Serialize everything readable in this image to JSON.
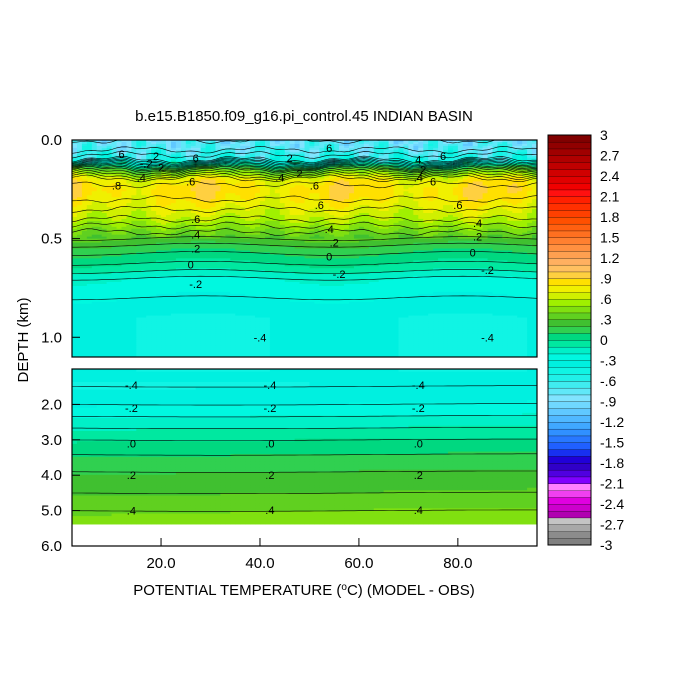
{
  "chart_data": {
    "type": "heatmap",
    "title": "b.e15.B1850.f09_g16.pi_control.45 INDIAN BASIN",
    "xlabel": "POTENTIAL TEMPERATURE (",
    "xlabel_unit": "C) (MODEL - OBS)",
    "ylabel": "DEPTH (km)",
    "xlim": [
      2,
      96
    ],
    "x_ticks": [
      "20.0",
      "40.0",
      "60.0",
      "80.0"
    ],
    "x_tick_values": [
      20,
      40,
      60,
      80
    ],
    "upper_panel": {
      "ylim": [
        0,
        1.1
      ],
      "y_ticks": [
        "0.0",
        "0.5",
        "1.0"
      ],
      "y_tick_values": [
        0,
        0.5,
        1.0
      ]
    },
    "lower_panel": {
      "ylim": [
        1,
        6
      ],
      "data_bottom": 5.375,
      "y_ticks": [
        "2.0",
        "3.0",
        "4.0",
        "5.0",
        "6.0"
      ],
      "y_tick_values": [
        2,
        3,
        4,
        5,
        6
      ]
    },
    "colorbar": {
      "min": -3,
      "max": 3,
      "step": 0.1,
      "tick_labels": [
        "3",
        "2.7",
        "2.4",
        "2.1",
        "1.8",
        "1.5",
        "1.2",
        ".9",
        ".6",
        ".3",
        "0",
        "-.3",
        "-.6",
        "-.9",
        "-1.2",
        "-1.5",
        "-1.8",
        "-2.1",
        "-2.4",
        "-2.7",
        "-3"
      ],
      "tick_values": [
        3,
        2.7,
        2.4,
        2.1,
        1.8,
        1.5,
        1.2,
        0.9,
        0.6,
        0.3,
        0,
        -0.3,
        -0.6,
        -0.9,
        -1.2,
        -1.5,
        -1.8,
        -2.1,
        -2.4,
        -2.7,
        -3
      ],
      "colors": {
        "-3.0": "#808080",
        "-2.9": "#8c8c8c",
        "-2.8": "#a8a8a8",
        "-2.7": "#c4c4c4",
        "-2.6": "#b000b0",
        "-2.5": "#cc00cc",
        "-2.4": "#e000e0",
        "-2.3": "#f040f0",
        "-2.2": "#ff80ff",
        "-2.1": "#8000ff",
        "-2.0": "#5000e0",
        "-1.9": "#3000c8",
        "-1.8": "#2000d8",
        "-1.7": "#1830f0",
        "-1.6": "#2060ff",
        "-1.5": "#2878ff",
        "-1.4": "#3090ff",
        "-1.3": "#40a8ff",
        "-1.2": "#50b8ff",
        "-1.1": "#60c8ff",
        "-1.0": "#70d8ff",
        "-0.9": "#80e4ff",
        "-0.8": "#60e8f8",
        "-0.7": "#40ecf0",
        "-0.6": "#20f0e8",
        "-0.5": "#10f4e4",
        "-0.4": "#00f0e0",
        "-0.3": "#00f8e0",
        "-0.2": "#00f0c8",
        "-0.1": "#00e8a0",
        "0.0": "#00d880",
        "0.1": "#30d050",
        "0.2": "#40c030",
        "0.3": "#60d020",
        "0.4": "#80e010",
        "0.5": "#a0f000",
        "0.6": "#d0f000",
        "0.7": "#f0f000",
        "0.8": "#ffe000",
        "0.9": "#ffd040",
        "1.0": "#ffc060",
        "1.1": "#ffb060",
        "1.2": "#ffa050",
        "1.3": "#ff9040",
        "1.4": "#ff8030",
        "1.5": "#ff7020",
        "1.6": "#ff6010",
        "1.7": "#ff5000",
        "1.8": "#ff4000",
        "1.9": "#ff3000",
        "2.0": "#ff2000",
        "2.1": "#ff1010",
        "2.2": "#f00000",
        "2.3": "#e00000",
        "2.4": "#d00000",
        "2.5": "#c00000",
        "2.6": "#b00000",
        "2.7": "#a00000",
        "2.8": "#900000",
        "2.9": "#800000"
      }
    },
    "profile": {
      "depth_km": [
        0.0,
        0.05,
        0.1,
        0.15,
        0.2,
        0.25,
        0.3,
        0.35,
        0.4,
        0.45,
        0.5,
        0.55,
        0.6,
        0.65,
        0.7,
        0.8,
        0.9,
        1.0,
        1.1,
        1.5,
        2.0,
        2.5,
        3.0,
        3.5,
        4.0,
        4.5,
        5.0,
        5.375
      ],
      "value": [
        -0.8,
        -0.7,
        -0.5,
        0.3,
        0.75,
        0.85,
        0.8,
        0.7,
        0.6,
        0.45,
        0.3,
        0.15,
        0.05,
        -0.05,
        -0.2,
        -0.3,
        -0.4,
        -0.4,
        -0.4,
        -0.4,
        -0.3,
        -0.15,
        0.0,
        0.12,
        0.22,
        0.3,
        0.4,
        0.45
      ]
    },
    "contour_labels": [
      {
        "text": "6",
        "x": 12,
        "depth": 0.07
      },
      {
        "text": "-.2",
        "x": 17,
        "depth": 0.12
      },
      {
        "text": "2",
        "x": 19,
        "depth": 0.08
      },
      {
        "text": "2",
        "x": 20,
        "depth": 0.14
      },
      {
        "text": "6",
        "x": 27,
        "depth": 0.09
      },
      {
        "text": ".4",
        "x": 16,
        "depth": 0.19
      },
      {
        "text": ".6",
        "x": 26,
        "depth": 0.21
      },
      {
        "text": ".8",
        "x": 11,
        "depth": 0.23
      },
      {
        "text": "2",
        "x": 46,
        "depth": 0.09
      },
      {
        "text": "2",
        "x": 48,
        "depth": 0.17
      },
      {
        "text": ".4",
        "x": 44,
        "depth": 0.19
      },
      {
        "text": "6",
        "x": 54,
        "depth": 0.04
      },
      {
        "text": ".6",
        "x": 51,
        "depth": 0.23
      },
      {
        "text": ".6",
        "x": 52,
        "depth": 0.33
      },
      {
        "text": "4",
        "x": 72,
        "depth": 0.1
      },
      {
        "text": "2",
        "x": 73,
        "depth": 0.15
      },
      {
        "text": "6",
        "x": 77,
        "depth": 0.08
      },
      {
        "text": ".4",
        "x": 72,
        "depth": 0.19
      },
      {
        "text": "6",
        "x": 75,
        "depth": 0.21
      },
      {
        "text": ".6",
        "x": 80,
        "depth": 0.33
      },
      {
        "text": ".6",
        "x": 27,
        "depth": 0.4
      },
      {
        "text": ".4",
        "x": 27,
        "depth": 0.48
      },
      {
        "text": ".2",
        "x": 27,
        "depth": 0.55
      },
      {
        "text": "0",
        "x": 26,
        "depth": 0.63
      },
      {
        "text": "-.2",
        "x": 27,
        "depth": 0.73
      },
      {
        "text": ".4",
        "x": 54,
        "depth": 0.45
      },
      {
        "text": ".2",
        "x": 55,
        "depth": 0.52
      },
      {
        "text": "0",
        "x": 54,
        "depth": 0.59
      },
      {
        "text": "-.2",
        "x": 56,
        "depth": 0.68
      },
      {
        "text": ".4",
        "x": 84,
        "depth": 0.42
      },
      {
        "text": ".2",
        "x": 84,
        "depth": 0.49
      },
      {
        "text": "0",
        "x": 83,
        "depth": 0.57
      },
      {
        "text": "-.2",
        "x": 86,
        "depth": 0.66
      },
      {
        "text": "-.4",
        "x": 40,
        "depth": 1.0
      },
      {
        "text": "-.4",
        "x": 86,
        "depth": 1.0
      },
      {
        "text": "-.4",
        "x": 14,
        "depth": 1.45
      },
      {
        "text": "-.4",
        "x": 42,
        "depth": 1.45
      },
      {
        "text": "-.4",
        "x": 72,
        "depth": 1.45
      },
      {
        "text": "-.2",
        "x": 14,
        "depth": 2.1
      },
      {
        "text": "-.2",
        "x": 42,
        "depth": 2.1
      },
      {
        "text": "-.2",
        "x": 72,
        "depth": 2.1
      },
      {
        "text": ".0",
        "x": 14,
        "depth": 3.1
      },
      {
        "text": ".0",
        "x": 42,
        "depth": 3.1
      },
      {
        "text": ".0",
        "x": 72,
        "depth": 3.1
      },
      {
        "text": ".2",
        "x": 14,
        "depth": 4.0
      },
      {
        "text": ".2",
        "x": 42,
        "depth": 4.0
      },
      {
        "text": ".2",
        "x": 72,
        "depth": 4.0
      },
      {
        "text": ".4",
        "x": 14,
        "depth": 5.0
      },
      {
        "text": ".4",
        "x": 42,
        "depth": 4.98
      },
      {
        "text": ".4",
        "x": 72,
        "depth": 4.98
      }
    ]
  }
}
